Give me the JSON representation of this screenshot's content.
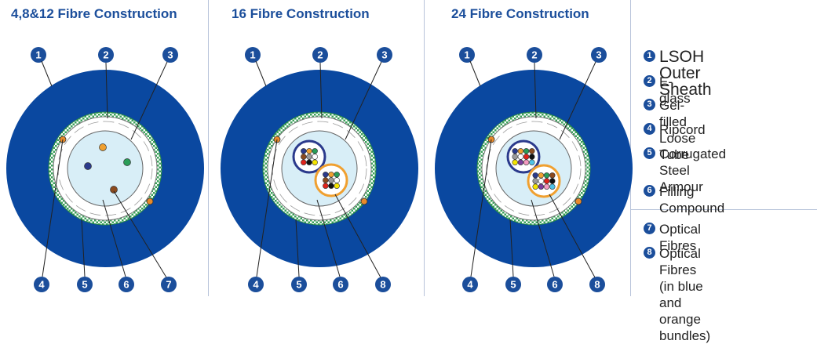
{
  "panels": [
    {
      "title": "4,8&12 Fibre Construction",
      "type": "single"
    },
    {
      "title": "16 Fibre Construction",
      "type": "bundles"
    },
    {
      "title": "24 Fibre Construction",
      "type": "bundles"
    }
  ],
  "callout_numbers": [
    "1",
    "2",
    "3",
    "4",
    "5",
    "6",
    "7",
    "8"
  ],
  "legend": [
    {
      "num": "1",
      "label": "LSOH Outer Sheath"
    },
    {
      "num": "2",
      "label": "E-glass"
    },
    {
      "num": "3",
      "label": "Gel-filled Loose Tube"
    },
    {
      "num": "4",
      "label": "Ripcord"
    },
    {
      "num": "5",
      "label": "Corrugated Steel\nArmour"
    },
    {
      "num": "6",
      "label": "Filling Compound"
    },
    {
      "num": "7",
      "label": "Optical Fibres"
    },
    {
      "num": "8",
      "label": "Optical Fibres\n(in blue and\norange bundles)"
    }
  ],
  "colors": {
    "outer_sheath": "#0a48a0",
    "armour_green": "#3aa15a",
    "loose_tube": "#d8eef7",
    "badge": "#1b4e9b",
    "bundle_blue": "#2b3a8c",
    "bundle_orange": "#f0a030",
    "fibre_colors": [
      "#2b3a8c",
      "#f0a030",
      "#2a9d58",
      "#8b4a1e",
      "#9a9a9a",
      "#ffffff",
      "#e0231b",
      "#111111",
      "#f4e400",
      "#7b3f9e",
      "#f49ac1",
      "#4fc3e8"
    ]
  }
}
